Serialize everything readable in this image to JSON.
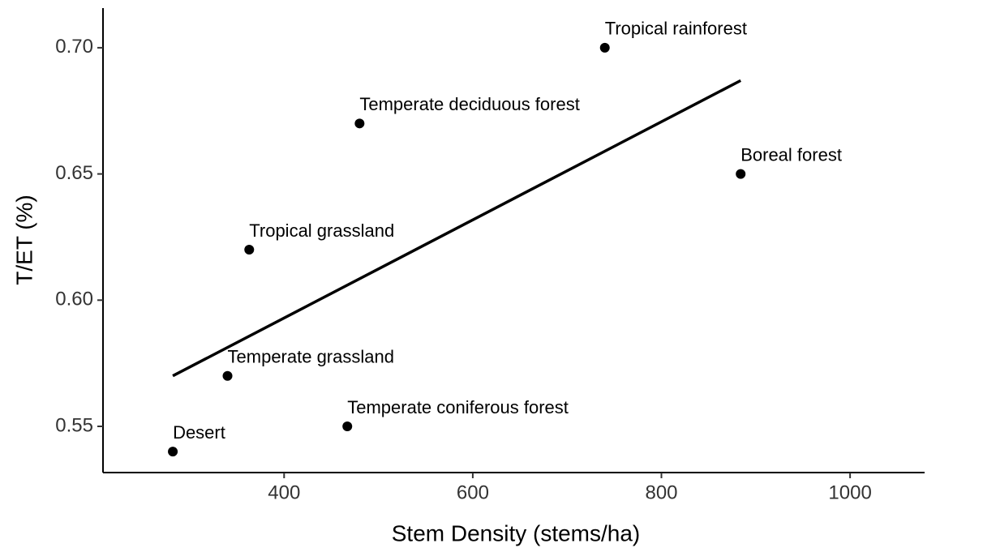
{
  "chart_data": {
    "type": "scatter",
    "x_label": "Stem Density (stems/ha)",
    "y_label": "T/ET (%)",
    "labels": [
      "Desert",
      "Temperate grassland",
      "Tropical grassland",
      "Temperate coniferous forest",
      "Temperate deciduous forest",
      "Tropical rainforest",
      "Boreal forest"
    ],
    "x": [
      282,
      340,
      363,
      467,
      480,
      740,
      884
    ],
    "values": [
      0.54,
      0.57,
      0.62,
      0.55,
      0.67,
      0.7,
      0.65
    ],
    "color": "#000000",
    "trend": {
      "x": [
        282,
        884
      ],
      "values": [
        0.57,
        0.687
      ],
      "color": "#000000"
    },
    "xlim": [
      208,
      1079
    ],
    "ylim": [
      0.5317,
      0.7157
    ],
    "xticks": [
      400,
      600,
      800,
      1000
    ],
    "yticks": [
      {
        "value": 0.55,
        "label": "0.55"
      },
      {
        "value": 0.6,
        "label": "0.60"
      },
      {
        "value": 0.65,
        "label": "0.65"
      },
      {
        "value": 0.7,
        "label": "0.70"
      }
    ],
    "grid": false
  }
}
